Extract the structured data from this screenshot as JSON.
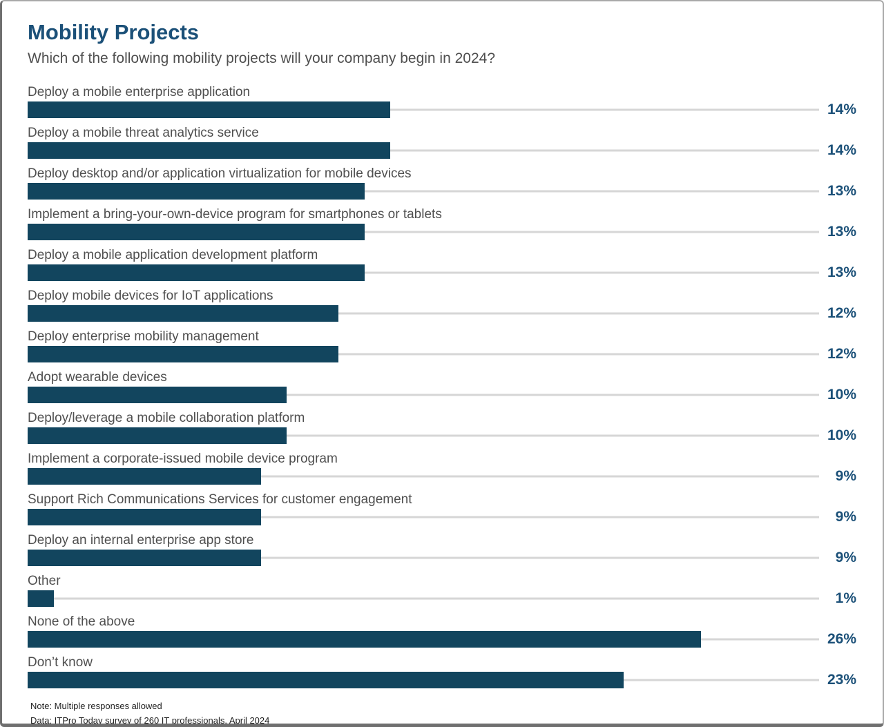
{
  "header": {
    "title": "Mobility Projects",
    "subtitle": "Which of the following mobility projects will your company begin in 2024?"
  },
  "chart_data": {
    "type": "bar",
    "orientation": "horizontal",
    "title": "Mobility Projects",
    "subtitle": "Which of the following mobility projects will your company begin in 2024?",
    "unit": "%",
    "xlim": [
      0,
      30.5
    ],
    "grid": "baseline-per-row",
    "value_label_position": "right",
    "categories": [
      "Deploy a mobile enterprise application",
      "Deploy a mobile threat analytics service",
      "Deploy desktop and/or application virtualization for mobile devices",
      "Implement a bring-your-own-device program for smartphones or tablets",
      "Deploy a mobile application development platform",
      "Deploy mobile devices for IoT applications",
      "Deploy enterprise mobility management",
      "Adopt wearable devices",
      "Deploy/leverage a mobile collaboration platform",
      "Implement a corporate-issued mobile device program",
      "Support Rich Communications Services for customer engagement",
      "Deploy an internal enterprise app store",
      "Other",
      "None of the above",
      "Don’t know"
    ],
    "values": [
      14,
      14,
      13,
      13,
      13,
      12,
      12,
      10,
      10,
      9,
      9,
      9,
      1,
      26,
      23
    ],
    "value_labels": [
      "14%",
      "14%",
      "13%",
      "13%",
      "13%",
      "12%",
      "12%",
      "10%",
      "10%",
      "9%",
      "9%",
      "9%",
      "1%",
      "26%",
      "23%"
    ],
    "colors": {
      "bar": "#12455E",
      "value_label": "#1B5078",
      "title": "#1B5078",
      "category_label": "#4F4F4F",
      "gridline": "#D6D6D6"
    }
  },
  "footer": {
    "note": "Note: Multiple responses allowed",
    "source": "Data: ITPro Today survey of 260 IT professionals, April 2024"
  }
}
